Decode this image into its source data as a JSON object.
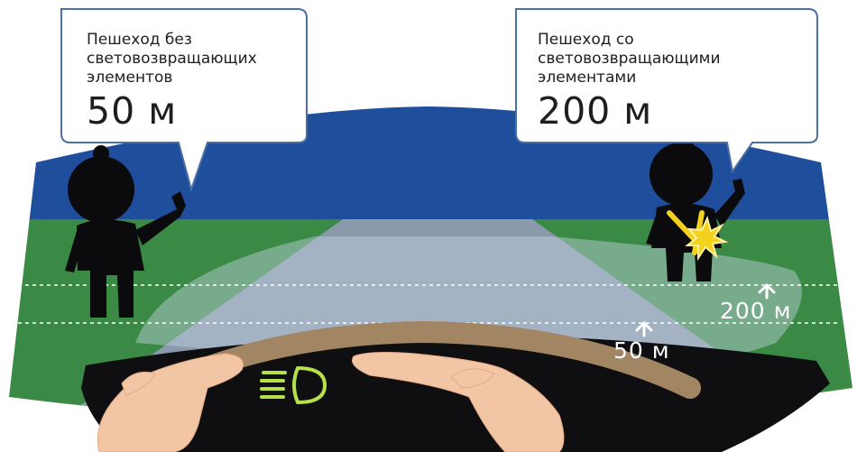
{
  "callout_left": {
    "line1": "Пешеход без",
    "line2": "световозвращающих",
    "line3": "элементов",
    "distance": "50 м"
  },
  "callout_right": {
    "line1": "Пешеход со",
    "line2": "световозвращающими",
    "line3": "элементами",
    "distance": "200 м"
  },
  "road_labels": {
    "near": "50 м",
    "far": "200 м"
  },
  "colors": {
    "sky": "#1f4f9c",
    "grass": "#3a8a45",
    "road": "#8a9aab",
    "dashboard": "#0f0f12",
    "wheel": "#a28562",
    "headlight_icon": "#b6e04a",
    "reflector": "#f2d21c"
  },
  "icons": [
    "low-beam-headlight-icon",
    "arrow-up-icon"
  ]
}
